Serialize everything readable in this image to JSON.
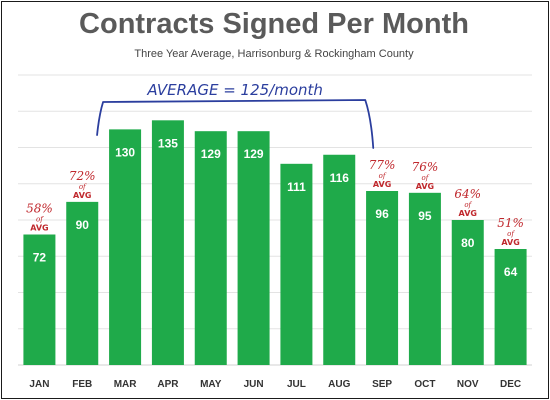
{
  "chart_data": {
    "type": "bar",
    "title": "Contracts Signed Per Month",
    "subtitle": "Three Year Average, Harrisonburg & Rockingham County",
    "categories": [
      "JAN",
      "FEB",
      "MAR",
      "APR",
      "MAY",
      "JUN",
      "JUL",
      "AUG",
      "SEP",
      "OCT",
      "NOV",
      "DEC"
    ],
    "values": [
      72,
      90,
      130,
      135,
      129,
      129,
      111,
      116,
      96,
      95,
      80,
      64
    ],
    "ylim": [
      0,
      160
    ],
    "grid": true,
    "bar_color": "#1faa4a",
    "annotation_color": "#c0282d",
    "bracket_color": "#2b3e9e",
    "average_label": "AVERAGE = 125/month",
    "percent_annotations": [
      {
        "category": "JAN",
        "pct": "58%",
        "of": "of",
        "avg": "AVG"
      },
      {
        "category": "FEB",
        "pct": "72%",
        "of": "of",
        "avg": "AVG"
      },
      {
        "category": "SEP",
        "pct": "77%",
        "of": "of",
        "avg": "AVG"
      },
      {
        "category": "OCT",
        "pct": "76%",
        "of": "of",
        "avg": "AVG"
      },
      {
        "category": "NOV",
        "pct": "64%",
        "of": "of",
        "avg": "AVG"
      },
      {
        "category": "DEC",
        "pct": "51%",
        "of": "of",
        "avg": "AVG"
      }
    ]
  }
}
